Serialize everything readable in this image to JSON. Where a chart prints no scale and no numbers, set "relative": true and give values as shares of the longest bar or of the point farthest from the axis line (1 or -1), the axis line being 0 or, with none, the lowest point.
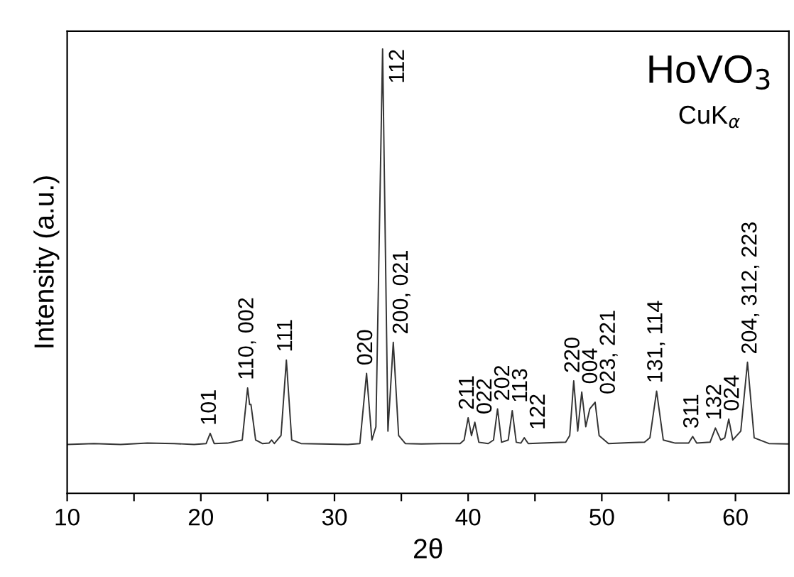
{
  "chart_data": {
    "type": "line",
    "relative": true,
    "xlabel": "2θ",
    "ylabel": "Intensity (a.u.)",
    "xlim": [
      10,
      64
    ],
    "xticks": [
      10,
      {
        "value": 15,
        "label": null
      },
      20,
      {
        "value": 25,
        "label": null
      },
      30,
      {
        "value": 35,
        "label": null
      },
      40,
      {
        "value": 45,
        "label": null
      },
      50,
      {
        "value": 55,
        "label": null
      },
      60
    ],
    "grid": false,
    "legend": false,
    "marker": "none",
    "line_style": "solid",
    "series": [
      {
        "color": "#333333",
        "x": [
          10,
          12,
          14,
          16,
          18,
          19.5,
          20.4,
          20.7,
          21.0,
          22,
          23.1,
          23.5,
          23.65,
          23.75,
          24.1,
          24.6,
          25.1,
          25.3,
          25.5,
          26.0,
          26.4,
          26.8,
          27.5,
          29,
          31,
          31.9,
          32.4,
          32.8,
          33.1,
          33.6,
          34.0,
          34.4,
          34.8,
          35.3,
          36.5,
          38,
          39.4,
          39.7,
          40.0,
          40.25,
          40.5,
          40.8,
          41.5,
          41.9,
          42.2,
          42.5,
          43.0,
          43.3,
          43.6,
          43.95,
          44.2,
          44.5,
          45.5,
          47.3,
          47.6,
          47.9,
          48.2,
          48.5,
          48.8,
          49.1,
          49.5,
          49.8,
          50.5,
          52,
          53.2,
          53.6,
          54.1,
          54.6,
          55.5,
          56.5,
          56.8,
          57.1,
          58.1,
          58.5,
          58.9,
          59.2,
          59.5,
          59.8,
          60.4,
          60.9,
          61.4,
          62.5,
          64
        ],
        "values": [
          0.11,
          0.112,
          0.11,
          0.113,
          0.112,
          0.11,
          0.112,
          0.135,
          0.112,
          0.113,
          0.12,
          0.237,
          0.2,
          0.2,
          0.12,
          0.112,
          0.113,
          0.12,
          0.112,
          0.13,
          0.3,
          0.12,
          0.112,
          0.111,
          0.11,
          0.112,
          0.27,
          0.12,
          0.15,
          1.0,
          0.14,
          0.34,
          0.13,
          0.112,
          0.111,
          0.112,
          0.112,
          0.12,
          0.17,
          0.13,
          0.16,
          0.115,
          0.112,
          0.12,
          0.19,
          0.115,
          0.12,
          0.186,
          0.115,
          0.113,
          0.125,
          0.112,
          0.113,
          0.115,
          0.13,
          0.253,
          0.14,
          0.228,
          0.15,
          0.19,
          0.205,
          0.13,
          0.112,
          0.114,
          0.115,
          0.125,
          0.23,
          0.12,
          0.113,
          0.113,
          0.128,
          0.113,
          0.115,
          0.147,
          0.12,
          0.125,
          0.167,
          0.12,
          0.14,
          0.295,
          0.125,
          0.112,
          0.111
        ]
      }
    ],
    "annotations": [
      "HoVO$_{3}$",
      "CuK$_{α}$",
      {
        "text": "101",
        "x": 20.7,
        "y": 0.135
      },
      {
        "text": "110, 002",
        "x": 23.5,
        "y": 0.237
      },
      {
        "text": "111",
        "x": 26.4,
        "y": 0.3
      },
      {
        "text": "020",
        "x": 32.4,
        "y": 0.27
      },
      {
        "text": "112",
        "x": 33.6,
        "y": 1.0
      },
      {
        "text": "200, 021",
        "x": 34.4,
        "y": 0.34
      },
      {
        "text": "211",
        "x": 40.0,
        "y": 0.17
      },
      {
        "text": "022",
        "x": 40.5,
        "y": 0.16
      },
      {
        "text": "202",
        "x": 42.2,
        "y": 0.19
      },
      {
        "text": "113",
        "x": 43.3,
        "y": 0.186
      },
      {
        "text": "122",
        "x": 44.2,
        "y": 0.125
      },
      {
        "text": "220",
        "x": 47.9,
        "y": 0.253
      },
      {
        "text": "004",
        "x": 48.5,
        "y": 0.228
      },
      {
        "text": "023, 221",
        "x": 49.5,
        "y": 0.205
      },
      {
        "text": "131, 114",
        "x": 54.1,
        "y": 0.23
      },
      {
        "text": "311",
        "x": 56.8,
        "y": 0.128
      },
      {
        "text": "132",
        "x": 58.5,
        "y": 0.147
      },
      {
        "text": "024",
        "x": 59.5,
        "y": 0.167
      },
      {
        "text": "204, 312, 223",
        "x": 60.9,
        "y": 0.295
      }
    ]
  }
}
